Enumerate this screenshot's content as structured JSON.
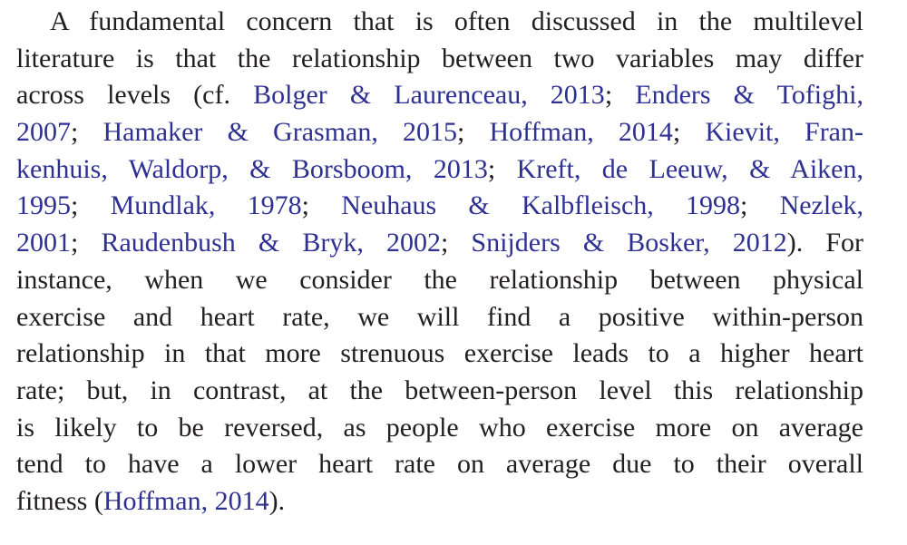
{
  "paragraph": {
    "lines": [
      [
        {
          "text": "A fundamental concern that is often discussed in the multilevel",
          "link": false
        }
      ],
      [
        {
          "text": "literature is that the relationship between two variables may differ",
          "link": false
        }
      ],
      [
        {
          "text": "across levels (cf. ",
          "link": false
        },
        {
          "text": "Bolger & Laurenceau, 2013",
          "link": true
        },
        {
          "text": "; ",
          "link": false
        },
        {
          "text": "Enders & Tofighi,",
          "link": true
        }
      ],
      [
        {
          "text": "2007",
          "link": true
        },
        {
          "text": "; ",
          "link": false
        },
        {
          "text": "Hamaker & Grasman, 2015",
          "link": true
        },
        {
          "text": "; ",
          "link": false
        },
        {
          "text": "Hoffman, 2014",
          "link": true
        },
        {
          "text": "; ",
          "link": false
        },
        {
          "text": "Kievit, Fran-",
          "link": true
        }
      ],
      [
        {
          "text": "kenhuis, Waldorp, & Borsboom, 2013",
          "link": true
        },
        {
          "text": "; ",
          "link": false
        },
        {
          "text": "Kreft, de Leeuw, & Aiken,",
          "link": true
        }
      ],
      [
        {
          "text": "1995",
          "link": true
        },
        {
          "text": "; ",
          "link": false
        },
        {
          "text": "Mundlak, 1978",
          "link": true
        },
        {
          "text": "; ",
          "link": false
        },
        {
          "text": "Neuhaus & Kalbfleisch, 1998",
          "link": true
        },
        {
          "text": "; ",
          "link": false
        },
        {
          "text": "Nezlek,",
          "link": true
        }
      ],
      [
        {
          "text": "2001",
          "link": true
        },
        {
          "text": "; ",
          "link": false
        },
        {
          "text": "Raudenbush & Bryk, 2002",
          "link": true
        },
        {
          "text": "; ",
          "link": false
        },
        {
          "text": "Snijders & Bosker, 2012",
          "link": true
        },
        {
          "text": "). For",
          "link": false
        }
      ],
      [
        {
          "text": "instance, when we consider the relationship between physical",
          "link": false
        }
      ],
      [
        {
          "text": "exercise and heart rate, we will find a positive within-person",
          "link": false
        }
      ],
      [
        {
          "text": "relationship in that more strenuous exercise leads to a higher heart",
          "link": false
        }
      ],
      [
        {
          "text": "rate; but, in contrast, at the between-person level this relationship",
          "link": false
        }
      ],
      [
        {
          "text": "is likely to be reversed, as people who exercise more on average",
          "link": false
        }
      ],
      [
        {
          "text": "tend to have a lower heart rate on average due to their overall",
          "link": false
        }
      ],
      [
        {
          "text": "fitness (",
          "link": false
        },
        {
          "text": "Hoffman, 2014",
          "link": true
        },
        {
          "text": ").",
          "link": false
        }
      ]
    ]
  }
}
